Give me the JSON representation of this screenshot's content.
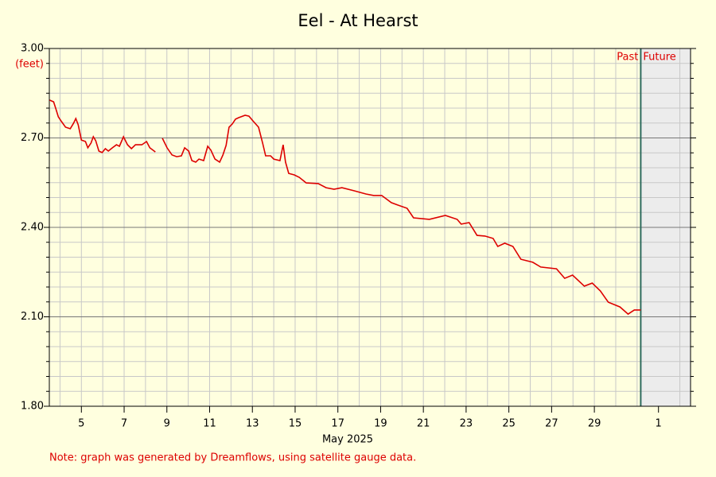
{
  "chart_data": {
    "type": "line",
    "title": "Eel - At Hearst",
    "ylabel": "(feet)",
    "xlabel": "May 2025",
    "note": "Note: graph was generated by Dreamflows, using satellite gauge data.",
    "past_label": "Past",
    "future_label": "Future",
    "now_x": 31.17,
    "color": "#dd0000",
    "grid": true,
    "xlim": [
      3.5,
      33.5
    ],
    "ylim": [
      1.8,
      3.0
    ],
    "xticks": [
      5,
      7,
      9,
      11,
      13,
      15,
      17,
      19,
      21,
      23,
      25,
      27,
      29,
      {
        "value": 32,
        "label": "1"
      }
    ],
    "yticks": [
      {
        "value": 1.8,
        "label": "1.80"
      },
      {
        "value": 2.1,
        "label": "2.10"
      },
      {
        "value": 2.4,
        "label": "2.40"
      },
      {
        "value": 2.7,
        "label": "2.70"
      },
      {
        "value": 3.0,
        "label": "3.00"
      }
    ],
    "x": [
      3.51,
      3.7,
      3.81,
      3.92,
      4.07,
      4.26,
      4.48,
      4.63,
      4.74,
      4.85,
      5.0,
      5.19,
      5.3,
      5.45,
      5.56,
      5.67,
      5.82,
      5.97,
      6.12,
      6.26,
      6.45,
      6.64,
      6.78,
      6.97,
      7.16,
      7.34,
      7.53,
      7.83,
      8.05,
      8.2,
      8.46,
      8.62,
      8.79,
      9.01,
      9.24,
      9.46,
      9.68,
      9.83,
      10.02,
      10.17,
      10.35,
      10.5,
      10.72,
      10.91,
      11.06,
      11.25,
      11.47,
      11.62,
      11.77,
      11.91,
      12.06,
      12.21,
      12.36,
      12.66,
      12.84,
      13.03,
      13.29,
      13.48,
      13.62,
      13.85,
      14.0,
      14.29,
      14.44,
      14.55,
      14.7,
      14.96,
      15.19,
      15.52,
      16.08,
      16.45,
      16.82,
      17.19,
      17.75,
      18.31,
      18.68,
      19.05,
      19.5,
      19.8,
      20.24,
      20.54,
      21.28,
      22.03,
      22.58,
      22.77,
      23.14,
      23.51,
      23.88,
      24.26,
      24.48,
      24.81,
      25.19,
      25.56,
      26.12,
      26.49,
      27.23,
      27.61,
      27.98,
      28.53,
      28.9,
      29.28,
      29.65,
      30.2,
      30.58,
      30.87,
      31.17
    ],
    "values": [
      2.827,
      2.821,
      2.797,
      2.771,
      2.755,
      2.736,
      2.731,
      2.749,
      2.765,
      2.744,
      2.693,
      2.688,
      2.667,
      2.683,
      2.704,
      2.691,
      2.656,
      2.651,
      2.664,
      2.656,
      2.667,
      2.677,
      2.672,
      2.704,
      2.677,
      2.664,
      2.677,
      2.677,
      2.688,
      2.667,
      2.653,
      null,
      2.699,
      2.667,
      2.643,
      2.637,
      2.64,
      2.667,
      2.656,
      2.624,
      2.619,
      2.629,
      2.624,
      2.672,
      2.659,
      2.629,
      2.619,
      2.643,
      2.675,
      2.736,
      2.747,
      2.763,
      2.768,
      2.776,
      2.773,
      2.757,
      2.736,
      2.683,
      2.64,
      2.64,
      2.629,
      2.624,
      2.677,
      2.619,
      2.581,
      2.576,
      2.568,
      2.549,
      2.547,
      2.533,
      2.528,
      2.533,
      2.523,
      2.512,
      2.507,
      2.507,
      2.483,
      2.475,
      2.464,
      2.432,
      2.427,
      2.44,
      2.427,
      2.411,
      2.416,
      2.373,
      2.371,
      2.363,
      2.336,
      2.347,
      2.336,
      2.293,
      2.283,
      2.267,
      2.261,
      2.229,
      2.24,
      2.203,
      2.213,
      2.187,
      2.149,
      2.133,
      2.109,
      2.123,
      2.123
    ]
  }
}
